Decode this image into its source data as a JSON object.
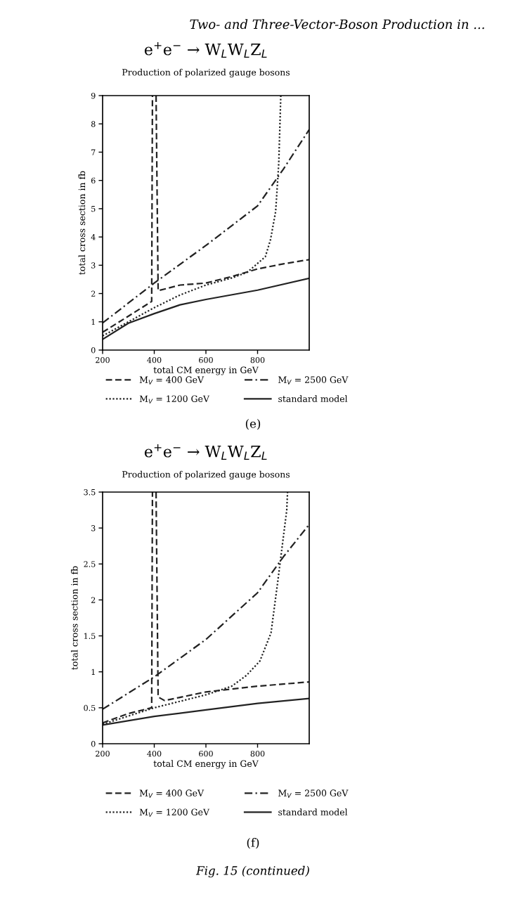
{
  "chart_data": [
    {
      "type": "line",
      "title": "e$^{+}$e$^{−}$ → W$_{L}$W$_{L}$Z$_{L}$",
      "subtitle": "Production of polarized gauge bosons",
      "xlabel": "total CM energy in GeV",
      "ylabel": "total cross section in fb",
      "annotations": [
        "Two- and Three-Vector-Boson Production in ...",
        "(e)"
      ],
      "xlim": [
        200,
        1000
      ],
      "xticks": [
        200,
        400,
        600,
        800
      ],
      "ylim": [
        0,
        9
      ],
      "yticks": [
        0,
        1,
        2,
        3,
        4,
        5,
        6,
        7,
        8,
        9
      ],
      "grid": false,
      "legend": "bottom",
      "series": [
        {
          "name": "M$_{V}$ = 400 GeV",
          "color": "#222222",
          "line_style": "dashed",
          "x": [
            200,
            300,
            390,
            393,
            null,
            407,
            415,
            500,
            600,
            700,
            800,
            900,
            1000
          ],
          "values": [
            0.63,
            1.2,
            1.72,
            9,
            null,
            9,
            2.1,
            2.3,
            2.37,
            2.6,
            2.87,
            3.05,
            3.2
          ]
        },
        {
          "name": "M$_{V}$ = 1200 GeV",
          "color": "#222222",
          "line_style": "dotted",
          "x": [
            200,
            300,
            400,
            500,
            600,
            700,
            760,
            830,
            850,
            870,
            882,
            890
          ],
          "values": [
            0.5,
            1.0,
            1.5,
            1.95,
            2.3,
            2.55,
            2.75,
            3.3,
            3.9,
            4.9,
            6.6,
            9
          ]
        },
        {
          "name": "M$_{V}$ = 2500 GeV",
          "color": "#222222",
          "line_style": "dashdot",
          "x": [
            200,
            400,
            600,
            800,
            900,
            1000
          ],
          "values": [
            0.96,
            2.37,
            3.7,
            5.1,
            6.4,
            7.8
          ]
        },
        {
          "name": "standard model",
          "color": "#222222",
          "line_style": "solid",
          "x": [
            200,
            300,
            400,
            500,
            600,
            800,
            1000
          ],
          "values": [
            0.38,
            0.95,
            1.29,
            1.6,
            1.79,
            2.12,
            2.54
          ]
        }
      ]
    },
    {
      "type": "line",
      "title": "e$^{+}$e$^{−}$ → W$_{L}$W$_{L}$Z$_{L}$",
      "subtitle": "Production of polarized gauge bosons",
      "xlabel": "total CM energy in GeV",
      "ylabel": "total cross section in fb",
      "annotations": [
        "(f)",
        "Fig. 15 (continued)"
      ],
      "xlim": [
        200,
        1000
      ],
      "xticks": [
        200,
        400,
        600,
        800
      ],
      "ylim": [
        0,
        3.5
      ],
      "yticks": [
        0,
        0.5,
        1,
        1.5,
        2,
        2.5,
        3,
        3.5
      ],
      "grid": false,
      "legend": "bottom",
      "series": [
        {
          "name": "M$_{V}$ = 400 GeV",
          "color": "#222222",
          "line_style": "dashed",
          "x": [
            200,
            300,
            390,
            393,
            null,
            407,
            415,
            440,
            600,
            800,
            1000
          ],
          "values": [
            0.29,
            0.42,
            0.5,
            3.5,
            null,
            3.5,
            0.65,
            0.6,
            0.72,
            0.8,
            0.86
          ]
        },
        {
          "name": "M$_{V}$ = 1200 GeV",
          "color": "#222222",
          "line_style": "dotted",
          "x": [
            200,
            400,
            600,
            700,
            757,
            809,
            852,
            878,
            913,
            916
          ],
          "values": [
            0.27,
            0.5,
            0.68,
            0.8,
            0.95,
            1.15,
            1.54,
            2.25,
            3.25,
            3.5
          ]
        },
        {
          "name": "M$_{V}$ = 2500 GeV",
          "color": "#222222",
          "line_style": "dashdot",
          "x": [
            200,
            400,
            600,
            800,
            900,
            1000
          ],
          "values": [
            0.48,
            0.93,
            1.45,
            2.1,
            2.6,
            3.05
          ]
        },
        {
          "name": "standard model",
          "color": "#222222",
          "line_style": "solid",
          "x": [
            200,
            400,
            600,
            800,
            1000
          ],
          "values": [
            0.26,
            0.38,
            0.47,
            0.56,
            0.63
          ]
        }
      ]
    }
  ]
}
